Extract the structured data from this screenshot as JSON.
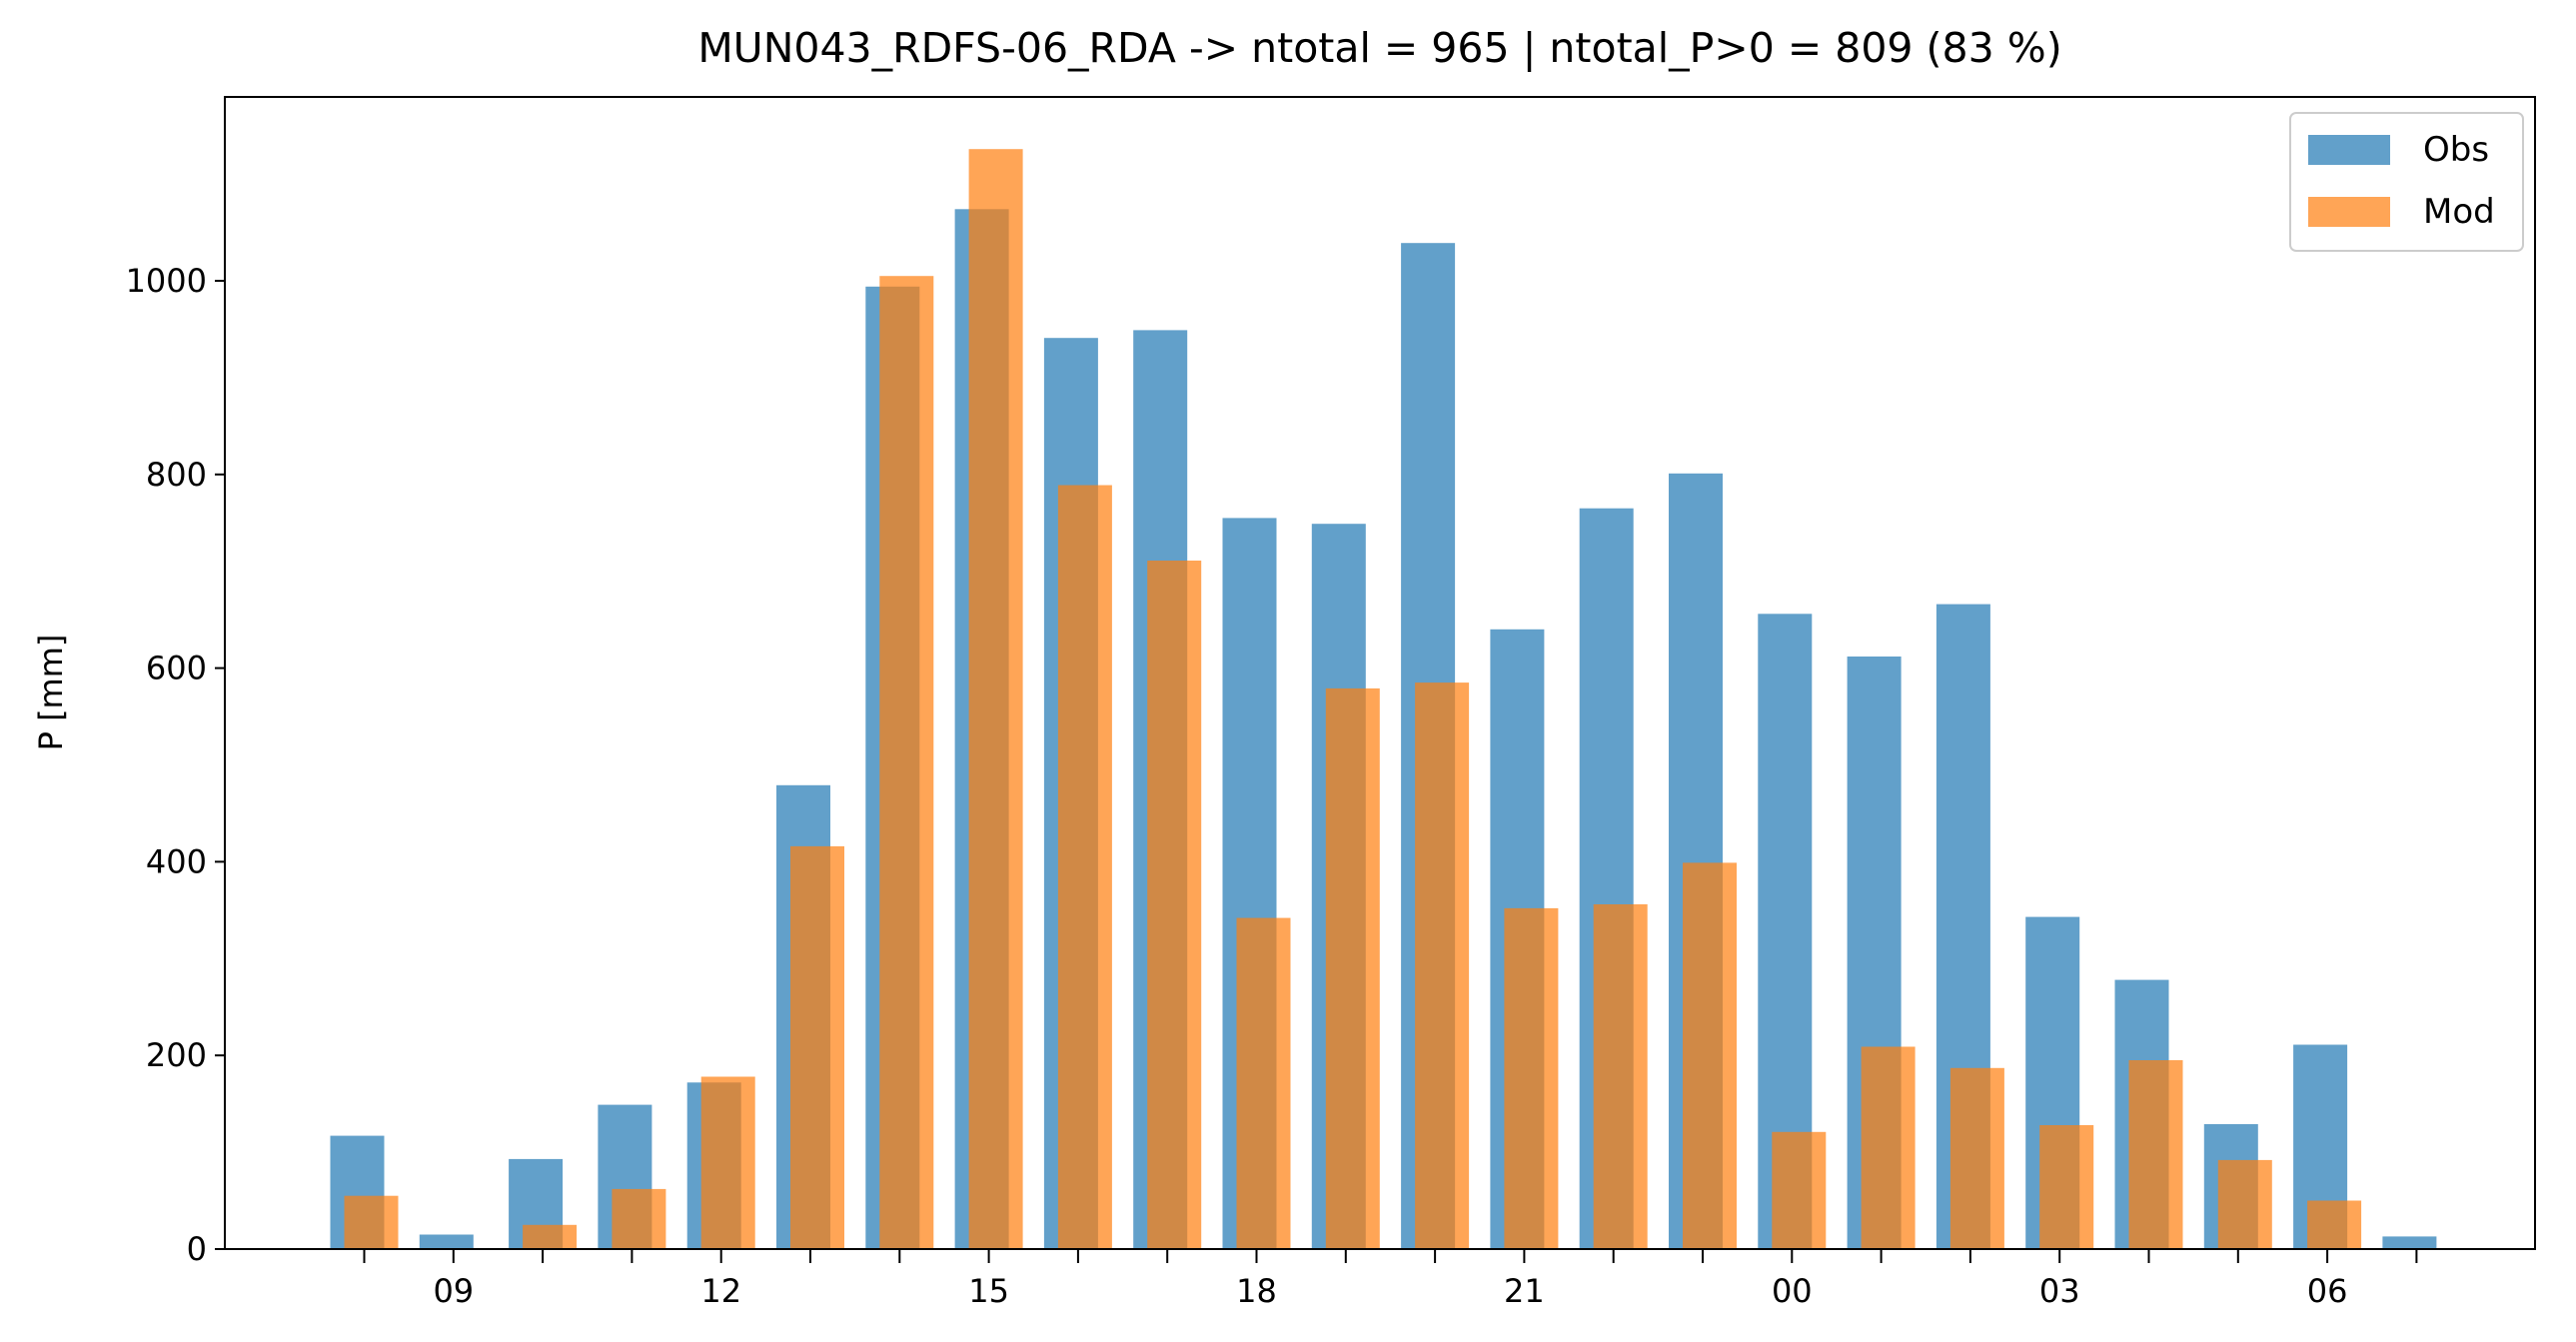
{
  "chart_data": {
    "type": "bar",
    "title": "MUN043_RDFS-06_RDA -> ntotal = 965 | ntotal_P>0 = 809 (83 %)",
    "xlabel": "",
    "ylabel": "P [mm]",
    "ylim": [
      0,
      1190
    ],
    "yticks": [
      "0",
      "200",
      "400",
      "600",
      "800",
      "1000"
    ],
    "xtick_labels": [
      "09",
      "12",
      "15",
      "18",
      "21",
      "00",
      "03",
      "06"
    ],
    "grid": false,
    "legend_position": "top-right",
    "categories": [
      "08",
      "09",
      "10",
      "11",
      "12",
      "13",
      "14",
      "15",
      "16",
      "17",
      "18",
      "19",
      "20",
      "21",
      "22",
      "23",
      "00",
      "01",
      "02",
      "03",
      "04",
      "05",
      "06",
      "07"
    ],
    "series": [
      {
        "name": "Obs",
        "color": "#1f77b4",
        "values": [
          117,
          15,
          93,
          149,
          172,
          479,
          994,
          1074,
          941,
          949,
          755,
          749,
          1039,
          640,
          765,
          801,
          656,
          612,
          666,
          343,
          278,
          129,
          211,
          13
        ]
      },
      {
        "name": "Mod",
        "color": "#ff7f0e",
        "values": [
          55,
          0,
          25,
          62,
          178,
          416,
          1005,
          1136,
          789,
          711,
          342,
          579,
          585,
          352,
          356,
          399,
          121,
          209,
          187,
          128,
          195,
          92,
          50,
          0
        ]
      }
    ]
  }
}
